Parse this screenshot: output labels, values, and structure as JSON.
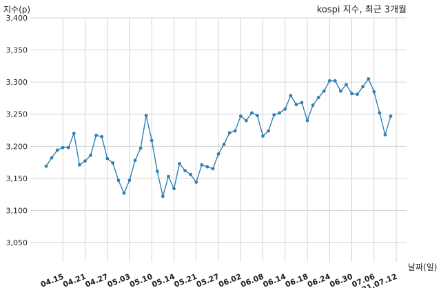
{
  "chart_data": {
    "type": "line",
    "title": "kospi 지수, 최근 3개월",
    "ylabel": "지수(p)",
    "xlabel": "날짜(일)",
    "ylim": [
      3020,
      3400
    ],
    "yticks": [
      "3,050",
      "3,100",
      "3,150",
      "3,200",
      "3,250",
      "3,300",
      "3,350",
      "3,400"
    ],
    "ytick_values": [
      3050,
      3100,
      3150,
      3200,
      3250,
      3300,
      3350,
      3400
    ],
    "xticks": [
      "04.15",
      "04.21",
      "04.27",
      "05.03",
      "05.10",
      "05.14",
      "05.21",
      "05.27",
      "06.02",
      "06.08",
      "06.14",
      "06.18",
      "06.24",
      "06.30",
      "07.06",
      "21.07.12"
    ],
    "xtick_index": [
      3,
      7,
      11,
      15,
      19,
      23,
      27,
      31,
      35,
      39,
      43,
      47,
      51,
      55,
      59,
      63
    ],
    "grid": true,
    "series": [
      {
        "values": [
          3169,
          3182,
          3194,
          3198,
          3198,
          3220,
          3171,
          3177,
          3186,
          3217,
          3215,
          3181,
          3174,
          3147,
          3127,
          3147,
          3178,
          3197,
          3248,
          3209,
          3161,
          3122,
          3153,
          3134,
          3173,
          3162,
          3156,
          3144,
          3171,
          3168,
          3165,
          3188,
          3203,
          3221,
          3224,
          3247,
          3240,
          3252,
          3248,
          3216,
          3224,
          3249,
          3252,
          3258,
          3279,
          3265,
          3268,
          3240,
          3264,
          3276,
          3286,
          3302,
          3302,
          3286,
          3296,
          3282,
          3281,
          3293,
          3305,
          3285,
          3252,
          3218,
          3247
        ]
      }
    ]
  },
  "colors": {
    "series": "#2f7fb0",
    "grid": "#c8c8c8"
  }
}
